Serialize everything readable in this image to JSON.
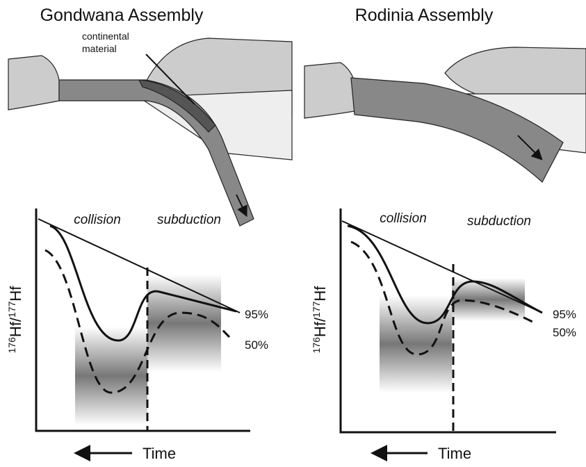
{
  "panels": [
    {
      "title": "Gondwana Assembly",
      "annotation": "continental material",
      "phases": [
        "collision",
        "subduction"
      ],
      "curves": [
        "95%",
        "50%"
      ],
      "y_label": {
        "mass1": "176",
        "element1": "Hf/",
        "mass2": "177",
        "element2": "Hf"
      },
      "x_label": "Time"
    },
    {
      "title": "Rodinia Assembly",
      "phases": [
        "collision",
        "subduction"
      ],
      "curves": [
        "95%",
        "50%"
      ],
      "y_label": {
        "mass1": "176",
        "element1": "Hf/",
        "mass2": "177",
        "element2": "Hf"
      },
      "x_label": "Time"
    }
  ]
}
